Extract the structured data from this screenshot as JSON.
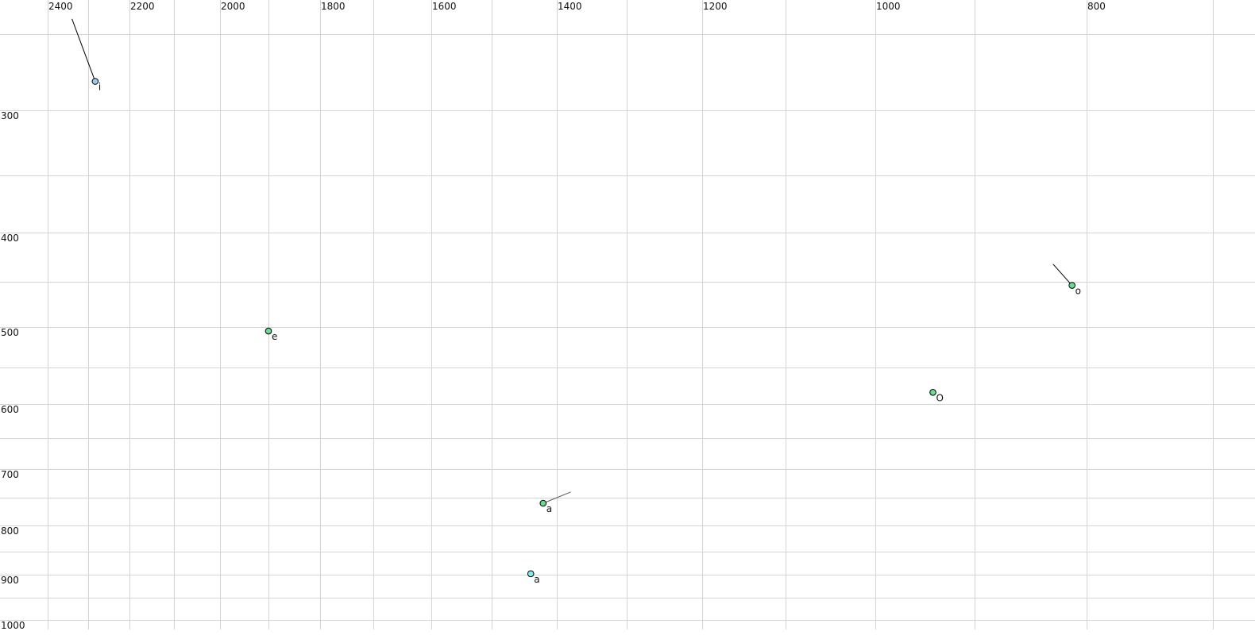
{
  "chart_data": {
    "type": "scatter",
    "x_axis": {
      "reversed": true,
      "ticks_labeled": [
        2400,
        2200,
        2000,
        1800,
        1600,
        1400,
        1200,
        1000,
        800
      ],
      "gridlines": [
        2400,
        2300,
        2200,
        2100,
        2000,
        1900,
        1800,
        1700,
        1600,
        1500,
        1400,
        1300,
        1200,
        1100,
        1000,
        900,
        800,
        700
      ],
      "position": "top"
    },
    "y_axis": {
      "reversed": false,
      "ticks_labeled": [
        300,
        400,
        500,
        600,
        700,
        800,
        900,
        1000
      ],
      "gridlines": [
        250,
        300,
        350,
        400,
        450,
        500,
        550,
        600,
        650,
        700,
        750,
        800,
        850,
        900,
        950,
        1000
      ],
      "position": "left"
    },
    "grid": true,
    "points": [
      {
        "label": "i",
        "x": 2283,
        "y": 281,
        "color": "#9cc8f5",
        "label_color": "#111111",
        "trajectory_from": {
          "x": 2340,
          "y": 240
        }
      },
      {
        "label": "e",
        "x": 1900,
        "y": 505,
        "color": "#5ee08c",
        "label_color": "#111111"
      },
      {
        "label": "o",
        "x": 813,
        "y": 454,
        "color": "#5ee08c",
        "label_color": "#111111",
        "trajectory_from": {
          "x": 830,
          "y": 432
        }
      },
      {
        "label": "O",
        "x": 942,
        "y": 584,
        "color": "#5ee08c",
        "label_color": "#111111"
      },
      {
        "label": "a",
        "x": 1421,
        "y": 760,
        "color": "#5ee08c",
        "label_color": "#666677",
        "trajectory_from": {
          "x": 1380,
          "y": 740
        }
      },
      {
        "label": "a",
        "x": 1440,
        "y": 898,
        "color": "#7af0f0",
        "label_color": "#111111"
      }
    ]
  }
}
